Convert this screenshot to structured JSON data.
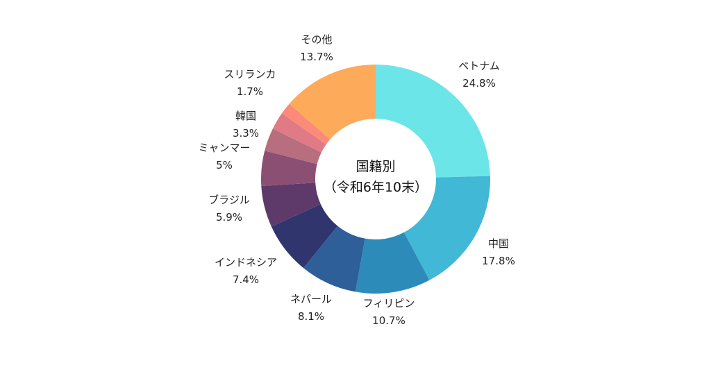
{
  "chart_data": {
    "type": "pie",
    "donut": true,
    "center_title": "国籍別",
    "center_subtitle": "（令和6年10末）",
    "start_angle_deg": 0,
    "direction": "clockwise",
    "slices": [
      {
        "name": "ベトナム",
        "value": 24.8,
        "value_label": "24.8%",
        "color": "#6ce5e8"
      },
      {
        "name": "中国",
        "value": 17.8,
        "value_label": "17.8%",
        "color": "#41b8d5"
      },
      {
        "name": "フィリピン",
        "value": 10.7,
        "value_label": "10.7%",
        "color": "#2d8bba"
      },
      {
        "name": "ネパール",
        "value": 8.1,
        "value_label": "8.1%",
        "color": "#2f5f98"
      },
      {
        "name": "インドネシア",
        "value": 7.4,
        "value_label": "7.4%",
        "color": "#31356e"
      },
      {
        "name": "ブラジル",
        "value": 5.9,
        "value_label": "5.9%",
        "color": "#5e3a6b"
      },
      {
        "name": "ミャンマー",
        "value": 5.0,
        "value_label": "5%",
        "color": "#8b4f73"
      },
      {
        "name": "韓国",
        "value": 3.3,
        "value_label": "3.3%",
        "color": "#b76e7e"
      },
      {
        "name": "",
        "value": 2.5,
        "value_label": "",
        "color": "#e07b85"
      },
      {
        "name": "スリランカ",
        "value": 1.7,
        "value_label": "1.7%",
        "color": "#fb8b78"
      },
      {
        "name": "その他",
        "value": 13.7,
        "value_label": "13.7%",
        "color": "#feaa5b"
      }
    ]
  }
}
